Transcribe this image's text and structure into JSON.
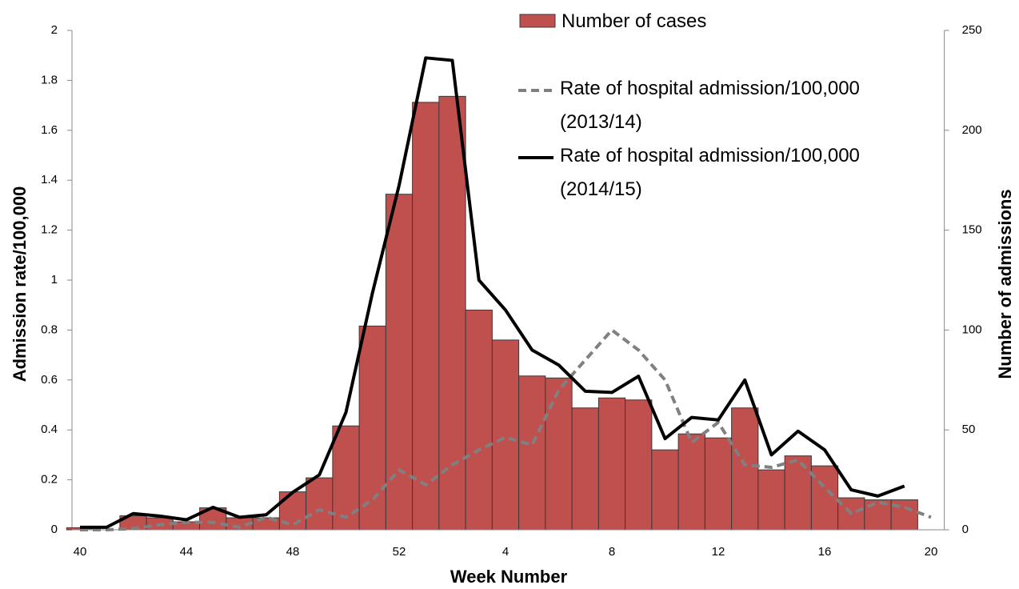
{
  "chart_data": {
    "type": "bar-line",
    "x_label": "Week Number",
    "y_label": "Admission rate/100,000",
    "y2_label": "Number of admissions",
    "categories": [
      "40",
      null,
      null,
      null,
      "44",
      null,
      null,
      null,
      "48",
      null,
      null,
      null,
      "52",
      null,
      null,
      null,
      "4",
      null,
      null,
      null,
      "8",
      null,
      null,
      null,
      "12",
      null,
      null,
      null,
      "16",
      null,
      null,
      null,
      "20"
    ],
    "ylim": [
      0,
      2
    ],
    "yticks": [
      0,
      0.2,
      0.4,
      0.6,
      0.8,
      1,
      1.2,
      1.4,
      1.6,
      1.8,
      2
    ],
    "y2lim": [
      0,
      250
    ],
    "y2ticks": [
      0,
      50,
      100,
      150,
      200,
      250
    ],
    "series": [
      {
        "name": "Number of cases",
        "type": "bar",
        "axis": "y2",
        "color": "#c0504d",
        "values": [
          1,
          0,
          7,
          6,
          4,
          11,
          6,
          6,
          19,
          26,
          52,
          102,
          168,
          214,
          217,
          110,
          95,
          77,
          76,
          61,
          66,
          65,
          40,
          48,
          46,
          61,
          30,
          37,
          32,
          16,
          15,
          15,
          null
        ]
      },
      {
        "name": "Rate of hospital admission/100,000 (2013/14)",
        "type": "line",
        "dashed": true,
        "color": "#808080",
        "values": [
          0,
          0,
          0.005,
          0.02,
          0.03,
          0.03,
          0.01,
          0.05,
          0.02,
          0.08,
          0.05,
          0.12,
          0.24,
          0.18,
          0.26,
          0.32,
          0.37,
          0.34,
          0.56,
          0.68,
          0.8,
          0.72,
          0.6,
          0.35,
          0.43,
          0.26,
          0.25,
          0.28,
          0.17,
          0.065,
          0.11,
          0.09,
          0.05
        ]
      },
      {
        "name": "Rate of hospital admission/100,000 (2014/15)",
        "type": "line",
        "dashed": false,
        "color": "#000000",
        "values": [
          0.01,
          0.01,
          0.065,
          0.055,
          0.04,
          0.09,
          0.05,
          0.06,
          0.15,
          0.22,
          0.47,
          0.95,
          1.38,
          1.89,
          1.88,
          1.0,
          0.88,
          0.72,
          0.66,
          0.555,
          0.55,
          0.615,
          0.365,
          0.45,
          0.44,
          0.6,
          0.3,
          0.395,
          0.32,
          0.16,
          0.135,
          0.175,
          null
        ]
      }
    ]
  }
}
